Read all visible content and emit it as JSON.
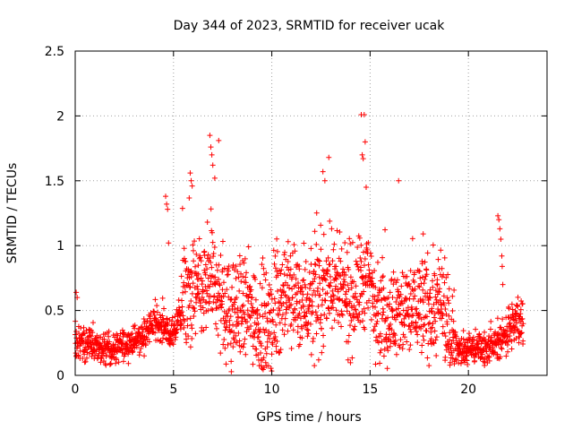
{
  "chart_data": {
    "type": "scatter",
    "title": "Day 344 of 2023, SRMTID for receiver ucak",
    "xlabel": "GPS time / hours",
    "ylabel": "SRMTID / TECUs",
    "xlim": [
      0,
      24
    ],
    "ylim": [
      0,
      2.5
    ],
    "xticks": [
      0,
      5,
      10,
      15,
      20
    ],
    "yticks": [
      0,
      0.5,
      1,
      1.5,
      2,
      2.5
    ],
    "xtick_labels": [
      "0",
      "5",
      "10",
      "15",
      "20"
    ],
    "ytick_labels": [
      "0",
      "0.5",
      "1",
      "1.5",
      "2",
      "2.5"
    ],
    "grid": true,
    "marker": "+",
    "series_color": "#ff0000",
    "profile": [
      [
        0.0,
        0.25
      ],
      [
        0.5,
        0.24
      ],
      [
        1.0,
        0.22
      ],
      [
        1.5,
        0.2
      ],
      [
        2.0,
        0.2
      ],
      [
        2.5,
        0.24
      ],
      [
        3.0,
        0.26
      ],
      [
        3.5,
        0.3
      ],
      [
        4.0,
        0.4
      ],
      [
        4.5,
        0.38
      ],
      [
        5.0,
        0.3
      ],
      [
        5.5,
        0.55
      ],
      [
        6.0,
        0.65
      ],
      [
        6.5,
        0.62
      ],
      [
        7.0,
        0.75
      ],
      [
        7.5,
        0.55
      ],
      [
        8.0,
        0.45
      ],
      [
        8.5,
        0.52
      ],
      [
        9.0,
        0.5
      ],
      [
        9.5,
        0.38
      ],
      [
        10.0,
        0.45
      ],
      [
        10.5,
        0.6
      ],
      [
        11.0,
        0.62
      ],
      [
        11.5,
        0.6
      ],
      [
        12.0,
        0.55
      ],
      [
        12.5,
        0.6
      ],
      [
        13.0,
        0.75
      ],
      [
        13.5,
        0.62
      ],
      [
        14.0,
        0.55
      ],
      [
        14.5,
        0.7
      ],
      [
        15.0,
        0.72
      ],
      [
        15.5,
        0.5
      ],
      [
        16.0,
        0.45
      ],
      [
        16.5,
        0.48
      ],
      [
        17.0,
        0.5
      ],
      [
        17.5,
        0.55
      ],
      [
        18.0,
        0.5
      ],
      [
        18.5,
        0.55
      ],
      [
        19.0,
        0.35
      ],
      [
        19.5,
        0.2
      ],
      [
        20.0,
        0.2
      ],
      [
        20.5,
        0.22
      ],
      [
        21.0,
        0.22
      ],
      [
        21.5,
        0.24
      ],
      [
        22.0,
        0.35
      ],
      [
        22.5,
        0.4
      ],
      [
        22.8,
        0.45
      ]
    ],
    "outliers": [
      [
        0.05,
        0.64
      ],
      [
        0.1,
        0.6
      ],
      [
        4.6,
        1.38
      ],
      [
        4.65,
        1.32
      ],
      [
        4.7,
        1.28
      ],
      [
        4.75,
        1.02
      ],
      [
        5.85,
        1.56
      ],
      [
        5.9,
        1.5
      ],
      [
        5.95,
        1.46
      ],
      [
        6.85,
        1.85
      ],
      [
        6.9,
        1.76
      ],
      [
        6.95,
        1.7
      ],
      [
        7.0,
        1.62
      ],
      [
        7.1,
        1.52
      ],
      [
        7.3,
        1.81
      ],
      [
        12.6,
        1.57
      ],
      [
        12.7,
        1.5
      ],
      [
        12.9,
        1.68
      ],
      [
        14.55,
        2.01
      ],
      [
        14.7,
        2.01
      ],
      [
        14.6,
        1.7
      ],
      [
        14.65,
        1.67
      ],
      [
        14.75,
        1.8
      ],
      [
        14.8,
        1.45
      ],
      [
        16.45,
        1.5
      ],
      [
        17.7,
        1.09
      ],
      [
        21.5,
        1.23
      ],
      [
        21.55,
        1.2
      ],
      [
        21.6,
        1.13
      ],
      [
        21.65,
        1.05
      ],
      [
        21.7,
        0.92
      ],
      [
        21.72,
        0.84
      ],
      [
        21.75,
        0.7
      ]
    ],
    "x_end": 22.8
  }
}
